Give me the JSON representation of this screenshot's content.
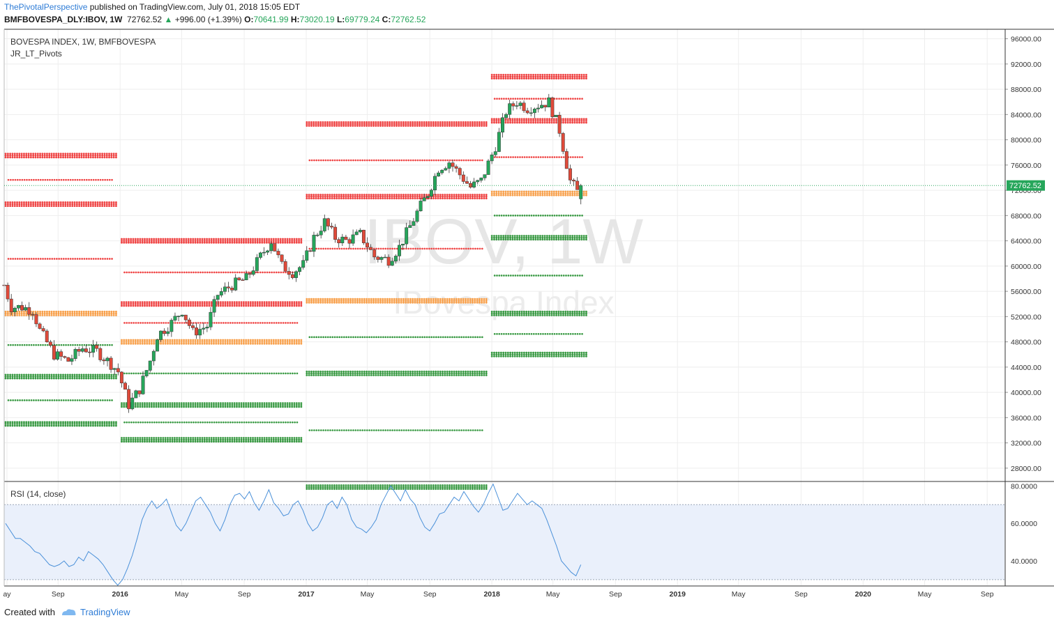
{
  "header": {
    "author": "ThePivotalPerspective",
    "published_text": "published on TradingView.com, July 01, 2018 15:05 EDT",
    "symbol": "BMFBOVESPA_DLY:IBOV, 1W",
    "last": "72762.52",
    "change_arrow": "▲",
    "change": "+996.00 (+1.39%)",
    "o_label": "O:",
    "o": "70641.99",
    "h_label": "H:",
    "h": "73020.19",
    "l_label": "L:",
    "l": "69779.24",
    "c_label": "C:",
    "c": "72762.52"
  },
  "legend": {
    "series": "BOVESPA INDEX, 1W, BMFBOVESPA",
    "indicator": "JR_LT_Pivots"
  },
  "watermark": {
    "symbol": "IBOV, 1W",
    "name": "IBovespa Index"
  },
  "rsi_label": "RSI (14, close)",
  "price_tag": "72762.52",
  "footer": {
    "created_with": "Created with",
    "brand": "TradingView"
  },
  "colors": {
    "up": "#26a65b",
    "down": "#e04a3a",
    "resistance": "#ef4444",
    "pivot": "#f8a04b",
    "support": "#3a9a44",
    "rsi_line": "#4a90d9",
    "rsi_band": "#eaf0fb",
    "grid": "#eeeeee",
    "accent": "#2e7cd6"
  },
  "chart_data": [
    {
      "type": "candlestick",
      "title": "BOVESPA INDEX, 1W, BMFBOVESPA",
      "ylim": [
        26000,
        97500
      ],
      "y_ticks": [
        "96000.00",
        "92000.00",
        "88000.00",
        "84000.00",
        "80000.00",
        "76000.00",
        "72000.00",
        "68000.00",
        "64000.00",
        "60000.00",
        "56000.00",
        "52000.00",
        "48000.00",
        "44000.00",
        "40000.00",
        "36000.00",
        "32000.00",
        "28000.00"
      ],
      "x_ticks": [
        "ay",
        "Sep",
        "2016",
        "May",
        "Sep",
        "2017",
        "May",
        "Sep",
        "2018",
        "May",
        "Sep",
        "2019",
        "May",
        "Sep",
        "2020",
        "May",
        "Sep"
      ],
      "last_price": 72762.52,
      "close_path": [
        [
          "2015-05-18",
          57000
        ],
        [
          "2015-06-01",
          53500
        ],
        [
          "2015-06-22",
          53500
        ],
        [
          "2015-07-13",
          53000
        ],
        [
          "2015-07-27",
          49800
        ],
        [
          "2015-08-24",
          46000
        ],
        [
          "2015-09-21",
          45000
        ],
        [
          "2015-10-19",
          47000
        ],
        [
          "2015-11-16",
          46500
        ],
        [
          "2015-12-14",
          44500
        ],
        [
          "2015-12-28",
          43300
        ],
        [
          "2016-01-18",
          38000
        ],
        [
          "2016-02-08",
          40500
        ],
        [
          "2016-02-29",
          45000
        ],
        [
          "2016-03-14",
          49000
        ],
        [
          "2016-04-11",
          51000
        ],
        [
          "2016-05-02",
          53000
        ],
        [
          "2016-05-23",
          49500
        ],
        [
          "2016-06-20",
          50500
        ],
        [
          "2016-07-11",
          55500
        ],
        [
          "2016-08-08",
          57000
        ],
        [
          "2016-09-05",
          58000
        ],
        [
          "2016-10-03",
          61500
        ],
        [
          "2016-10-24",
          64000
        ],
        [
          "2016-11-14",
          60000
        ],
        [
          "2016-12-05",
          59000
        ],
        [
          "2016-12-26",
          60200
        ],
        [
          "2017-01-16",
          64500
        ],
        [
          "2017-02-06",
          67000
        ],
        [
          "2017-02-27",
          64500
        ],
        [
          "2017-03-20",
          64000
        ],
        [
          "2017-04-17",
          65000
        ],
        [
          "2017-05-15",
          61500
        ],
        [
          "2017-06-12",
          61000
        ],
        [
          "2017-07-03",
          63000
        ],
        [
          "2017-08-07",
          68500
        ],
        [
          "2017-08-28",
          71500
        ],
        [
          "2017-09-18",
          75500
        ],
        [
          "2017-10-09",
          76500
        ],
        [
          "2017-10-30",
          74500
        ],
        [
          "2017-11-20",
          72500
        ],
        [
          "2017-12-11",
          73500
        ],
        [
          "2018-01-08",
          79000
        ],
        [
          "2018-01-29",
          84500
        ],
        [
          "2018-02-19",
          86000
        ],
        [
          "2018-03-12",
          85000
        ],
        [
          "2018-04-02",
          85500
        ],
        [
          "2018-04-23",
          86000
        ],
        [
          "2018-05-14",
          81500
        ],
        [
          "2018-06-04",
          73500
        ],
        [
          "2018-06-18",
          71800
        ],
        [
          "2018-06-25",
          72762.52
        ]
      ],
      "pivot_levels": {
        "yearly": [
          {
            "period": "2015",
            "R2": 77500,
            "R1": 69800,
            "P": 52500,
            "S1": 42500,
            "S2": 35000
          },
          {
            "period": "2016",
            "R2": 64000,
            "R1": 54000,
            "P": 48000,
            "S1": 38000,
            "S2": 32500
          },
          {
            "period": "2017",
            "R2": 82500,
            "R1": 71000,
            "P": 54500,
            "S1": 43000,
            "S2": 25000
          },
          {
            "period": "2018",
            "R2": 90000,
            "R1": 83000,
            "P": 71500,
            "S1": 64500,
            "S2": 52500,
            "S3": 46000
          }
        ]
      }
    },
    {
      "type": "line",
      "title": "RSI (14, close)",
      "ylim": [
        27,
        82
      ],
      "y_ticks": [
        "80.0000",
        "60.0000",
        "40.0000"
      ],
      "band": [
        30,
        70
      ],
      "values": [
        60,
        56,
        52,
        52,
        50,
        48,
        45,
        44,
        41,
        38,
        37,
        38,
        40,
        37,
        38,
        42,
        40,
        45,
        43,
        41,
        38,
        34,
        30,
        27,
        30,
        36,
        43,
        52,
        62,
        68,
        72,
        68,
        70,
        73,
        66,
        59,
        56,
        60,
        66,
        72,
        74,
        70,
        66,
        60,
        56,
        62,
        70,
        75,
        76,
        73,
        77,
        71,
        67,
        72,
        78,
        71,
        68,
        64,
        65,
        70,
        72,
        67,
        60,
        56,
        58,
        63,
        70,
        72,
        68,
        74,
        70,
        62,
        58,
        57,
        55,
        58,
        62,
        70,
        75,
        80,
        76,
        72,
        78,
        73,
        70,
        63,
        58,
        56,
        60,
        65,
        66,
        70,
        74,
        72,
        77,
        73,
        69,
        66,
        70,
        76,
        81,
        74,
        67,
        68,
        72,
        76,
        73,
        70,
        72,
        70,
        68,
        62,
        55,
        48,
        40,
        37,
        34,
        32,
        38
      ]
    }
  ]
}
